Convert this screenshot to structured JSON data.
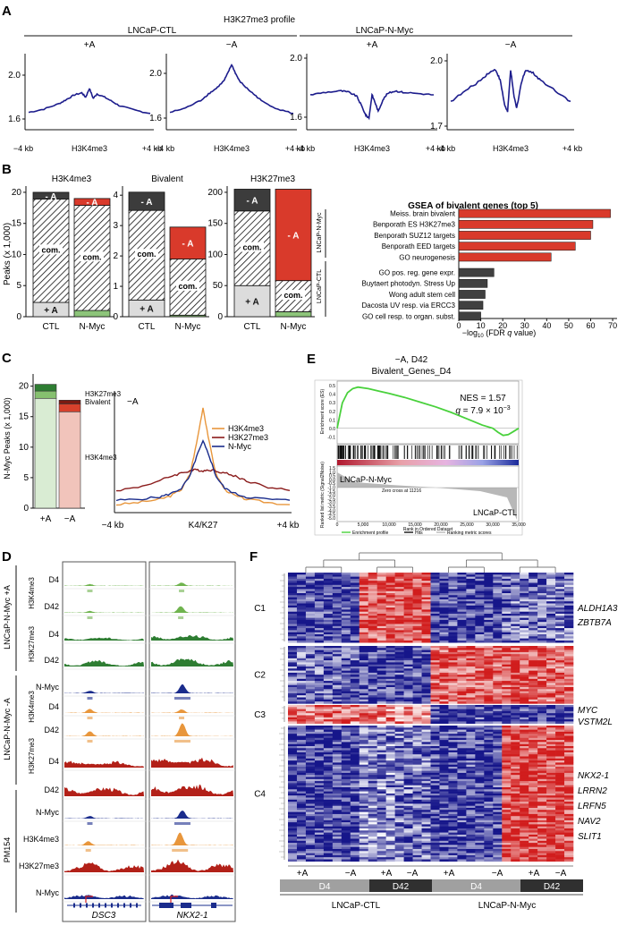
{
  "panel_labels": {
    "a": "A",
    "b": "B",
    "c": "C",
    "d": "D",
    "e": "E",
    "f": "F"
  },
  "palette": {
    "profile": "#1c1c8c",
    "red": "#d93a2b",
    "dark": "#3c3c3c",
    "green": "#8dc57a",
    "light": "#dcdcdc",
    "orange": "#e8963c",
    "navy": "#1a2c8c",
    "maroon": "#8a1a1a",
    "gsea_bar_dark": "#404040"
  },
  "panel_a": {
    "title": "H3K27me3 profile",
    "groups": [
      {
        "label": "LNCaP-CTL"
      },
      {
        "label": "LNCaP-N-Myc"
      }
    ],
    "xlabels": {
      "left": "−4 kb",
      "center": "H3K4me3",
      "right": "+4 kb"
    },
    "chart_data": {
      "type": "line",
      "x_range": [
        -4,
        4
      ],
      "panels": [
        {
          "group": "LNCaP-CTL",
          "condition": "+A",
          "y_ticks": [
            "2.0",
            "1.6"
          ],
          "ylim": [
            1.55,
            2.2
          ],
          "x": [
            -4,
            -3,
            -2,
            -1.5,
            -1,
            -0.5,
            -0.25,
            0,
            0.25,
            0.5,
            1,
            1.5,
            2,
            3,
            4
          ],
          "y": [
            1.66,
            1.69,
            1.74,
            1.78,
            1.82,
            1.84,
            1.8,
            1.88,
            1.79,
            1.83,
            1.8,
            1.76,
            1.72,
            1.68,
            1.65
          ]
        },
        {
          "group": "LNCaP-CTL",
          "condition": "−A",
          "y_ticks": [
            "2.0",
            "1.6"
          ],
          "ylim": [
            1.55,
            2.2
          ],
          "x": [
            -4,
            -3,
            -2,
            -1.5,
            -1,
            -0.5,
            -0.25,
            0,
            0.25,
            0.5,
            1,
            1.5,
            2,
            3,
            4
          ],
          "y": [
            1.66,
            1.7,
            1.77,
            1.83,
            1.88,
            1.95,
            2.02,
            2.1,
            2.02,
            1.95,
            1.88,
            1.82,
            1.76,
            1.69,
            1.65
          ]
        },
        {
          "group": "LNCaP-N-Myc",
          "condition": "+A",
          "y_ticks": [
            "2.0",
            "1.6"
          ],
          "ylim": [
            1.55,
            2.1
          ],
          "x": [
            -4,
            -3,
            -2,
            -1.5,
            -1,
            -0.7,
            -0.4,
            -0.2,
            0,
            0.2,
            0.4,
            0.7,
            1,
            1.5,
            2,
            3,
            4
          ],
          "y": [
            1.78,
            1.8,
            1.81,
            1.8,
            1.77,
            1.7,
            1.62,
            1.6,
            1.78,
            1.72,
            1.65,
            1.74,
            1.79,
            1.81,
            1.8,
            1.79,
            1.78
          ]
        },
        {
          "group": "LNCaP-N-Myc",
          "condition": "−A",
          "y_ticks": [
            "2.0",
            "1.7"
          ],
          "ylim": [
            1.65,
            2.05
          ],
          "x": [
            -4,
            -3,
            -2,
            -1.5,
            -1,
            -0.7,
            -0.4,
            -0.2,
            0,
            0.2,
            0.4,
            0.7,
            1,
            1.5,
            2,
            3,
            4
          ],
          "y": [
            1.78,
            1.84,
            1.9,
            1.94,
            1.96,
            1.9,
            1.76,
            1.72,
            1.96,
            1.82,
            1.74,
            1.88,
            1.96,
            1.94,
            1.9,
            1.84,
            1.78
          ]
        }
      ]
    }
  },
  "panel_b": {
    "seg_labels": {
      "minus": "- A",
      "common": "com.",
      "plus": "+ A"
    },
    "chart_data": {
      "type": "bar",
      "stacks": [
        {
          "title": "H3K4me3",
          "categories": [
            "CTL",
            "N-Myc"
          ],
          "y_ticks": [
            0,
            5,
            10,
            15,
            20
          ],
          "ylim": [
            0,
            21
          ],
          "plus": [
            2.3,
            1.0
          ],
          "common": [
            16.6,
            16.9
          ],
          "minus": [
            1.1,
            1.1
          ]
        },
        {
          "title": "Bivalent",
          "categories": [
            "CTL",
            "N-Myc"
          ],
          "y_ticks": [
            0,
            1,
            2,
            3,
            4
          ],
          "ylim": [
            0,
            4.3
          ],
          "plus": [
            0.55,
            0.05
          ],
          "common": [
            2.95,
            1.85
          ],
          "minus": [
            0.6,
            1.05
          ]
        },
        {
          "title": "H3K27me3",
          "categories": [
            "CTL",
            "N-Myc"
          ],
          "y_ticks": [
            0,
            50,
            100,
            150,
            200
          ],
          "ylim": [
            0,
            210
          ],
          "plus": [
            50,
            8
          ],
          "common": [
            120,
            50
          ],
          "minus": [
            35,
            147
          ]
        }
      ],
      "ylabel": "Peaks (x 1,000)"
    }
  },
  "panel_gsea": {
    "title": "GSEA of bivalent genes (top 5)",
    "group_labels": {
      "nmyc": "LNCaP-N-Myc",
      "ctl": "LNCaP-CTL"
    },
    "xlabel": "−log10 (FDR q value)",
    "chart_data": {
      "type": "bar",
      "orientation": "horizontal",
      "categories": [
        "Meiss. brain bivalent",
        "Benporath ES H3K27me3",
        "Benporath SUZ12 targets",
        "Benporath EED targets",
        "GO neurogenesis",
        "GO pos. reg. gene expr.",
        "Buytaert photodyn. Stress Up",
        "Wong adult stem cell",
        "Dacosta UV resp. via ERCC3",
        "GO cell resp. to organ. subst."
      ],
      "values": [
        69,
        61,
        60,
        53,
        42,
        16,
        13,
        12,
        11,
        10
      ],
      "groups": [
        "LNCaP-N-Myc",
        "LNCaP-N-Myc",
        "LNCaP-N-Myc",
        "LNCaP-N-Myc",
        "LNCaP-N-Myc",
        "LNCaP-CTL",
        "LNCaP-CTL",
        "LNCaP-CTL",
        "LNCaP-CTL",
        "LNCaP-CTL"
      ],
      "x_ticks": [
        0,
        10,
        20,
        30,
        40,
        50,
        60,
        70
      ],
      "xlim": [
        0,
        72
      ]
    }
  },
  "panel_c_bar": {
    "ylabel": "N-Myc Peaks (x 1,000)",
    "labels": {
      "h3k27": "H3K27me3",
      "bivalent": "Bivalent",
      "h3k4": "H3K4me3"
    },
    "chart_data": {
      "type": "bar",
      "categories": [
        "+A",
        "−A"
      ],
      "y_ticks": [
        0,
        5,
        10,
        15,
        20
      ],
      "ylim": [
        0,
        22
      ],
      "series": [
        {
          "name": "H3K4me3",
          "values": [
            18.0,
            15.8
          ]
        },
        {
          "name": "Bivalent",
          "values": [
            1.2,
            1.3
          ]
        },
        {
          "name": "H3K27me3",
          "values": [
            1.1,
            0.6
          ]
        }
      ]
    }
  },
  "panel_c_line": {
    "tag": "−A",
    "xlabels": {
      "left": "−4 kb",
      "center": "K4/K27",
      "right": "+4 kb"
    },
    "chart_data": {
      "type": "line",
      "x": [
        -4,
        -3,
        -2,
        -1.5,
        -1,
        -0.6,
        -0.3,
        0,
        0.3,
        0.6,
        1,
        1.5,
        2,
        3,
        4
      ],
      "series": [
        {
          "name": "H3K4me3",
          "values": [
            0.04,
            0.06,
            0.09,
            0.12,
            0.18,
            0.32,
            0.6,
            0.93,
            0.6,
            0.32,
            0.18,
            0.12,
            0.09,
            0.06,
            0.04
          ]
        },
        {
          "name": "H3K27me3",
          "values": [
            0.17,
            0.2,
            0.26,
            0.3,
            0.33,
            0.35,
            0.36,
            0.35,
            0.36,
            0.35,
            0.33,
            0.3,
            0.26,
            0.2,
            0.17
          ]
        },
        {
          "name": "N-Myc",
          "values": [
            0.08,
            0.09,
            0.11,
            0.14,
            0.19,
            0.3,
            0.48,
            0.62,
            0.48,
            0.3,
            0.19,
            0.14,
            0.11,
            0.09,
            0.08
          ]
        }
      ],
      "ylim": [
        0,
        1.05
      ]
    }
  },
  "panel_e": {
    "title1": "−A, D42",
    "title2": "Bivalent_Genes_D4",
    "nes": "NES = 1.57",
    "q_prefix": "q",
    "q_value": " = 7.9 × 10",
    "q_exp": "−3",
    "pos_label": "LNCaP-N-Myc",
    "neg_label": "LNCaP-CTL",
    "y_top_label": "Enrichment score (ES)",
    "y_bottom_label": "Ranked list metric (Signal2Noise)",
    "x_label": "Rank in Ordered Dataset",
    "zero_cross": "Zero cross at 11216",
    "es_ticks": [
      "0.5",
      "0.4",
      "0.3",
      "0.2",
      "0.1",
      "0.0",
      "-0.1"
    ],
    "metric_ticks": [
      "1.5",
      "1.0",
      "0.5",
      "0.0",
      "-0.5",
      "-1.0",
      "-1.5",
      "-2.0",
      "-2.5",
      "-3.0",
      "-3.5",
      "-4.0",
      "-4.5",
      "-5.0"
    ],
    "x_ticks": [
      "0",
      "5,000",
      "10,000",
      "15,000",
      "20,000",
      "25,000",
      "30,000",
      "35,000"
    ],
    "legend": [
      "Enrichment profile",
      "Hits",
      "Ranking metric scores"
    ],
    "chart_data": {
      "type": "line",
      "x": [
        0,
        1000,
        2000,
        3000,
        4000,
        6000,
        8000,
        10000,
        13000,
        16000,
        19000,
        22000,
        25000,
        28000,
        30000,
        31000,
        32000,
        33000,
        34000,
        35000
      ],
      "values": [
        0.0,
        0.32,
        0.45,
        0.5,
        0.52,
        0.5,
        0.47,
        0.44,
        0.39,
        0.33,
        0.27,
        0.2,
        0.12,
        0.04,
        0.0,
        -0.05,
        -0.09,
        -0.08,
        -0.04,
        0.0
      ],
      "ylim": [
        -0.15,
        0.55
      ],
      "xlim": [
        0,
        35000
      ]
    }
  },
  "panel_d": {
    "group_labels": [
      "LNCaP-N-Myc +A",
      "LNCaP-N-Myc -A",
      "PM154"
    ],
    "mark_labels": {
      "h3k4_g1": "H3K4me3",
      "h3k27_g1": "H3K27me3",
      "h3k4_g2": "H3K4me3",
      "h3k27_g2": "H3K27me3"
    },
    "genes": [
      "DSC3",
      "NKX2-1"
    ],
    "tracks": [
      {
        "label": "D4",
        "color": "#6fb34e",
        "kind": "peak",
        "a": [
          0.32,
          0.1
        ],
        "b": [
          0.37,
          0.2
        ]
      },
      {
        "label": "D42",
        "color": "#6fb34e",
        "kind": "peak",
        "a": [
          0.32,
          0.1
        ],
        "b": [
          0.36,
          0.4
        ]
      },
      {
        "label": "D4",
        "color": "#2e7d32",
        "kind": "noise",
        "a": [
          0.2,
          0.15
        ],
        "b": [
          0.35,
          0.2
        ]
      },
      {
        "label": "D42",
        "color": "#2e7d32",
        "kind": "noise",
        "a": [
          0.35,
          0.25
        ],
        "b": [
          0.5,
          0.3
        ]
      },
      {
        "label": "N-Myc",
        "color": "#1a2c8c",
        "kind": "peak",
        "a": [
          0.32,
          0.15
        ],
        "b": [
          0.38,
          0.55
        ]
      },
      {
        "label": "D4",
        "color": "#e8963c",
        "kind": "peak",
        "a": [
          0.32,
          0.25
        ],
        "b": [
          0.37,
          0.2
        ]
      },
      {
        "label": "D42",
        "color": "#e8963c",
        "kind": "peak",
        "a": [
          0.32,
          0.3
        ],
        "b": [
          0.38,
          0.8
        ]
      },
      {
        "label": "D4",
        "color": "#b22018",
        "kind": "noise",
        "a": [
          0.45,
          0.3
        ],
        "b": [
          0.65,
          0.5
        ]
      },
      {
        "label": "D42",
        "color": "#b22018",
        "kind": "noise",
        "a": [
          0.6,
          0.4
        ],
        "b": [
          0.75,
          0.6
        ]
      },
      {
        "label": "N-Myc",
        "color": "#1a2c8c",
        "kind": "peak",
        "a": [
          0.32,
          0.15
        ],
        "b": [
          0.38,
          0.5
        ]
      },
      {
        "label": "H3K4me3",
        "color": "#e8963c",
        "kind": "peak",
        "a": [
          0.3,
          0.25
        ],
        "b": [
          0.35,
          0.8
        ]
      },
      {
        "label": "H3K27me3",
        "color": "#b22018",
        "kind": "noise",
        "a": [
          0.5,
          0.4
        ],
        "b": [
          0.6,
          0.5
        ]
      },
      {
        "label": "N-Myc",
        "color": "#1a2c8c",
        "kind": "noise",
        "a": [
          0.25,
          0.2
        ],
        "b": [
          0.25,
          0.2
        ]
      }
    ]
  },
  "panel_f": {
    "clusters": [
      "C1",
      "C2",
      "C3",
      "C4"
    ],
    "genes": [
      "ALDH1A3",
      "ZBTB7A",
      "MYC",
      "VSTM2L",
      "NKX2-1",
      "LRRN2",
      "LRFN5",
      "NAV2",
      "SLIT1"
    ],
    "cond_labels": [
      "+A",
      "−A",
      "+A",
      "−A",
      "+A",
      "−A",
      "+A",
      "−A"
    ],
    "time_labels": [
      "D4",
      "D42",
      "D4",
      "D42"
    ],
    "line_labels": [
      "LNCaP-CTL",
      "LNCaP-N-Myc"
    ],
    "chart_data": {
      "type": "heatmap",
      "rows": 4,
      "columns": 8,
      "row_labels": [
        "C1",
        "C2",
        "C3",
        "C4"
      ],
      "column_labels": [
        "CTL D4 +A",
        "CTL D4 −A",
        "CTL D42 +A",
        "CTL D42 −A",
        "N-Myc D4 +A",
        "N-Myc D4 −A",
        "N-Myc D42 +A",
        "N-Myc D42 −A"
      ],
      "values": [
        [
          -0.8,
          -0.8,
          0.75,
          0.8,
          -0.8,
          -0.8,
          -0.6,
          -0.6
        ],
        [
          -0.6,
          -0.7,
          -0.8,
          -0.8,
          0.7,
          0.75,
          0.8,
          0.7
        ],
        [
          0.6,
          0.6,
          0.55,
          0.5,
          -0.8,
          -0.8,
          -0.8,
          -0.8
        ],
        [
          -0.8,
          -0.8,
          -0.5,
          -0.6,
          -0.8,
          -0.8,
          0.85,
          0.8
        ]
      ],
      "color_scale": [
        "#16168a",
        "#ffffff",
        "#d11d1d"
      ]
    }
  }
}
